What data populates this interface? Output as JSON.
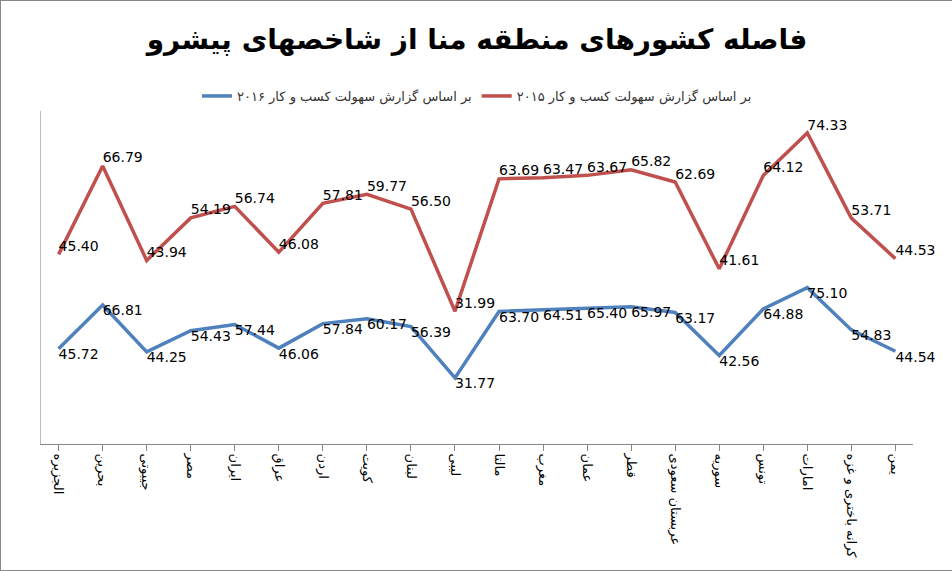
{
  "chart_data": {
    "type": "line",
    "title": "فاصله کشورهای منطقه منا از شاخصهای پیشرو",
    "categories": [
      "الجزیره",
      "بحرین",
      "جیبوتی",
      "مصر",
      "ایران",
      "عراق",
      "اردن",
      "کویت",
      "لبنان",
      "لیبی",
      "مالتا",
      "مغرب",
      "عمان",
      "قطر",
      "عربستان سعودی",
      "سوریه",
      "تونس",
      "امارات",
      "کرانه باختری و غزه",
      "یمن"
    ],
    "series": [
      {
        "name": "بر اساس گزارش سهولت کسب و کار ۲۰۱۶",
        "color": "#4F81BD",
        "values": [
          45.72,
          66.81,
          44.25,
          54.43,
          57.44,
          46.06,
          57.84,
          60.17,
          56.39,
          31.77,
          63.7,
          64.51,
          65.4,
          65.97,
          63.17,
          42.56,
          64.88,
          75.1,
          54.83,
          44.54
        ],
        "value_labels": [
          "45.72",
          "66.81",
          "44.25",
          "54.43",
          "57.44",
          "46.06",
          "57.84",
          "60.17",
          "56.39",
          "31.77",
          "63.70",
          "64.51",
          "65.40",
          "65.97",
          "63.17",
          "42.56",
          "64.88",
          "75.10",
          "54.83",
          "44.54"
        ]
      },
      {
        "name": "بر اساس گزارش سهولت کسب و کار ۲۰۱۵",
        "color": "#C0504D",
        "values": [
          45.4,
          66.79,
          43.94,
          54.19,
          56.74,
          46.08,
          57.81,
          59.77,
          56.5,
          31.99,
          63.69,
          63.47,
          63.67,
          65.82,
          62.69,
          41.61,
          64.12,
          74.33,
          53.71,
          44.53
        ],
        "value_labels": [
          "45.40",
          "66.79",
          "43.94",
          "54.19",
          "56.74",
          "46.08",
          "57.81",
          "59.77",
          "56.50",
          "31.99",
          "63.69",
          "63.47",
          "63.67",
          "65.82",
          "62.69",
          "41.61",
          "64.12",
          "74.33",
          "53.71",
          "44.53"
        ]
      }
    ],
    "stacked": true,
    "data_labels": true,
    "ylim": [
      0,
      160
    ],
    "tick_labels": "x",
    "grid": false,
    "legend": "top"
  }
}
